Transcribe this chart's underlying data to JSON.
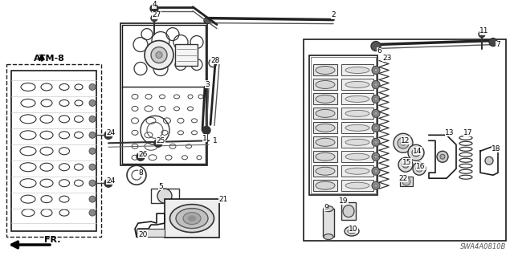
{
  "bg_color": "#ffffff",
  "diagram_code": "SWA4A0810B",
  "atm_label": "ATM-8",
  "fr_label": "FR.",
  "line_color": "#1a1a1a",
  "text_color": "#000000"
}
